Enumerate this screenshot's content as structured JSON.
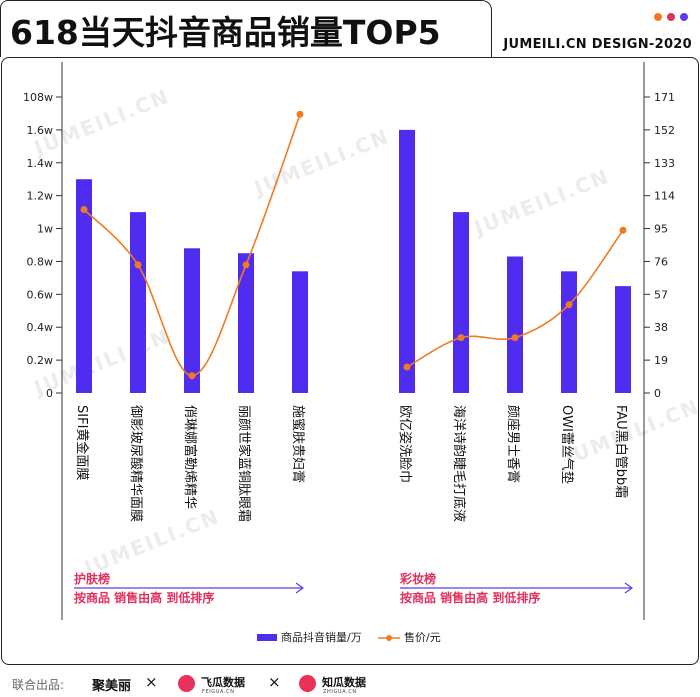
{
  "header": {
    "title": "618当天抖音商品销量TOP5",
    "brand_tag": "JUMEILI.CN DESIGN-2020",
    "dot_colors": [
      "#f07a1e",
      "#e0305d",
      "#5b3cf0"
    ]
  },
  "watermark_text": "JUMEILI.CN",
  "chart_data": {
    "type": "bar",
    "y_left_ticks": [
      "108w",
      "1.6w",
      "1.4w",
      "1.2w",
      "1w",
      "0.8w",
      "0.6w",
      "0.4w",
      "0.2w",
      "0"
    ],
    "y_right_ticks": [
      "171",
      "152",
      "133",
      "114",
      "95",
      "76",
      "57",
      "38",
      "19",
      "0"
    ],
    "ylim_left": [
      0,
      1.8
    ],
    "ylim_right": [
      0,
      171
    ],
    "colors": {
      "bar": "#4f2cf0",
      "line": "#f07a1e"
    },
    "groups": [
      {
        "name": "护肤榜",
        "note": "按商品 销售由高 到低排序",
        "categories": [
          "SIFI黄金面膜",
          "御影玻尿酸精华面膜",
          "俏琳娜富勒烯精华",
          "丽颜世家蓝铜肽眼霜",
          "施蜜肤贵妇膏"
        ],
        "sales": [
          1.3,
          1.1,
          0.88,
          0.85,
          0.74
        ],
        "price": [
          106,
          74,
          10,
          74,
          161
        ]
      },
      {
        "name": "彩妆榜",
        "note": "按商品 销售由高 到低排序",
        "categories": [
          "欧亿姿洗脸巾",
          "海洋诗韵睫毛打底液",
          "颜座男士香膏",
          "OWI蕾丝气垫",
          "FAU黑白管bb霜"
        ],
        "sales": [
          1.6,
          1.1,
          0.83,
          0.74,
          0.65
        ],
        "price": [
          15,
          32,
          32,
          51,
          94
        ]
      }
    ],
    "legend": [
      {
        "name": "商品抖音销量/万",
        "kind": "bar"
      },
      {
        "name": "售价/元",
        "kind": "line"
      }
    ],
    "legend_position": "bottom"
  },
  "footer": {
    "label": "联合出品:",
    "brand1": "聚美丽",
    "brand2": "飞瓜数据",
    "brand2_sub": "FEIGUA.CN",
    "brand3": "知瓜数据",
    "brand3_sub": "ZHIGUA.CN",
    "sep": "×"
  }
}
